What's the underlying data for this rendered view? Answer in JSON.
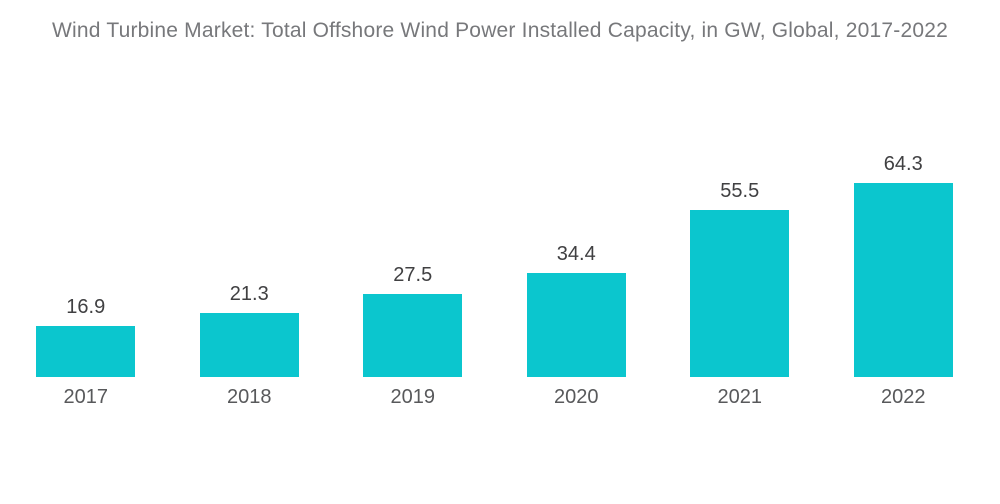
{
  "chart_data": {
    "type": "bar",
    "title": "Wind Turbine Market: Total Offshore Wind Power Installed Capacity, in GW, Global, 2017-2022",
    "categories": [
      "2017",
      "2018",
      "2019",
      "2020",
      "2021",
      "2022"
    ],
    "values": [
      16.9,
      21.3,
      27.5,
      34.4,
      55.5,
      64.3
    ],
    "xlabel": "",
    "ylabel": "",
    "ylim": [
      0,
      70
    ],
    "grid": false,
    "legend": "none",
    "axes_drawn": false,
    "value_labels_shown": true
  },
  "colors": {
    "bar": "#0bc6ce",
    "title_text": "#77787b",
    "value_label_text": "#404042",
    "axis_label_text": "#58595b",
    "background": "#ffffff"
  }
}
